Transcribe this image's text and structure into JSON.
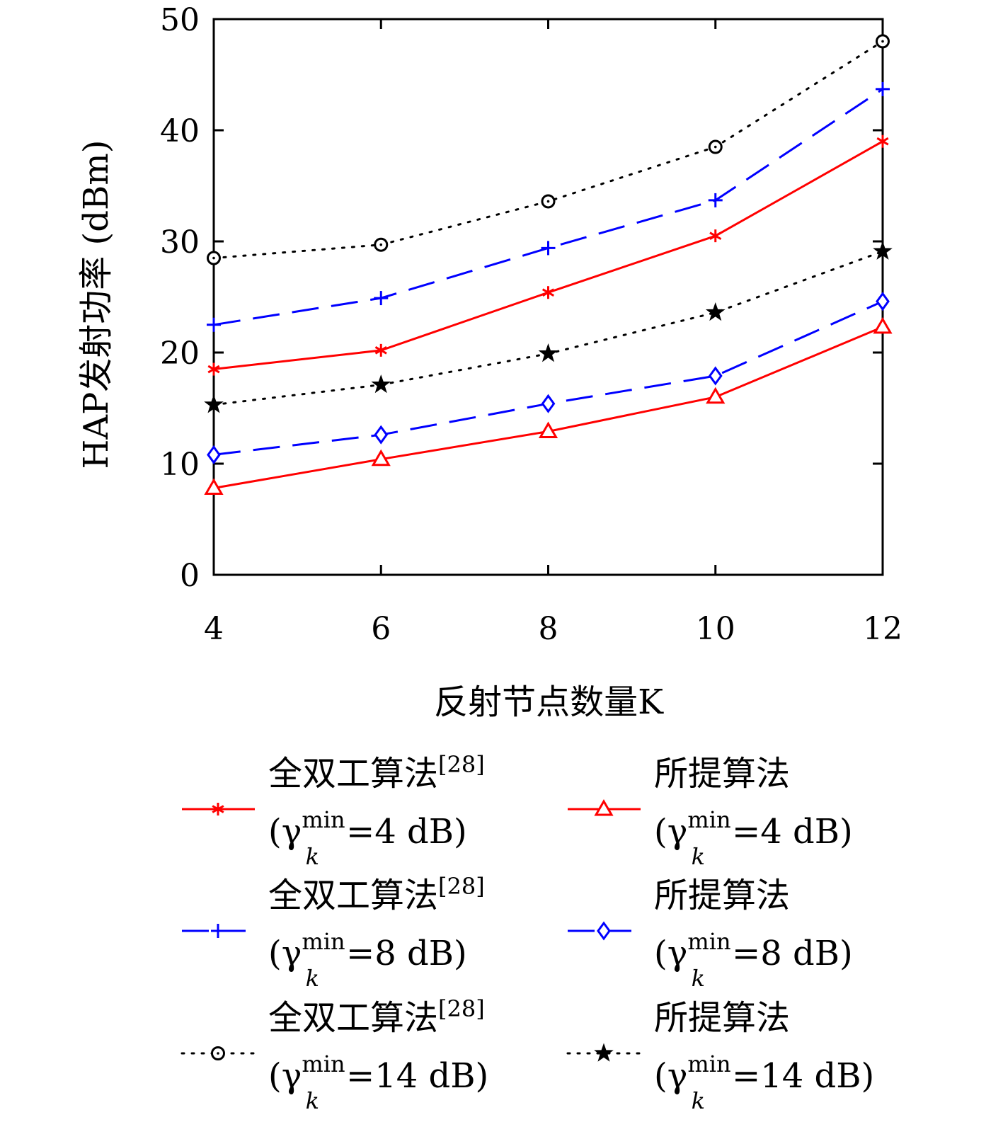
{
  "chart_data": {
    "type": "line",
    "xlabel": "反射节点数量K",
    "ylabel": "HAP发射功率 (dBm)",
    "x": [
      4,
      6,
      8,
      10,
      12
    ],
    "xlim": [
      4,
      12
    ],
    "ylim": [
      0,
      50
    ],
    "xticks": [
      "4",
      "6",
      "8",
      "10",
      "12"
    ],
    "yticks": [
      "0",
      "10",
      "20",
      "30",
      "40",
      "50"
    ],
    "grid": false,
    "legend_position": "bottom",
    "series": [
      {
        "label_main": "全双工算法",
        "label_ref": "[28]",
        "label_gamma": "γ",
        "label_sub": "k",
        "label_sup": "min",
        "label_value": "=4 dB",
        "color": "#ff0000",
        "style": "solid",
        "marker": "asterisk",
        "values": [
          18.5,
          20.2,
          25.4,
          30.5,
          39.0
        ]
      },
      {
        "label_main": "所提算法",
        "label_ref": "",
        "label_gamma": "γ",
        "label_sub": "k",
        "label_sup": "min",
        "label_value": "=4 dB",
        "color": "#ff0000",
        "style": "solid",
        "marker": "triangle",
        "values": [
          7.8,
          10.4,
          12.9,
          16.0,
          22.3
        ]
      },
      {
        "label_main": "全双工算法",
        "label_ref": "[28]",
        "label_gamma": "γ",
        "label_sub": "k",
        "label_sup": "min",
        "label_value": "=8 dB",
        "color": "#0000ff",
        "style": "dashed",
        "marker": "plus",
        "values": [
          22.5,
          24.9,
          29.4,
          33.7,
          43.7
        ]
      },
      {
        "label_main": "所提算法",
        "label_ref": "",
        "label_gamma": "γ",
        "label_sub": "k",
        "label_sup": "min",
        "label_value": "=8 dB",
        "color": "#0000ff",
        "style": "dashed",
        "marker": "diamond",
        "values": [
          10.8,
          12.6,
          15.4,
          17.9,
          24.6
        ]
      },
      {
        "label_main": "全双工算法",
        "label_ref": "[28]",
        "label_gamma": "γ",
        "label_sub": "k",
        "label_sup": "min",
        "label_value": "=14 dB",
        "color": "#000000",
        "style": "dotted",
        "marker": "circle",
        "values": [
          28.5,
          29.7,
          33.6,
          38.5,
          48.0
        ]
      },
      {
        "label_main": "所提算法",
        "label_ref": "",
        "label_gamma": "γ",
        "label_sub": "k",
        "label_sup": "min",
        "label_value": "=14 dB",
        "color": "#000000",
        "style": "dotted",
        "marker": "star",
        "values": [
          15.3,
          17.1,
          19.9,
          23.6,
          29.1
        ]
      }
    ]
  }
}
